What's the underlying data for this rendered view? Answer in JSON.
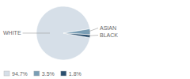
{
  "chart_data": {
    "type": "pie",
    "categories": [
      "WHITE",
      "ASIAN",
      "BLACK"
    ],
    "values": [
      94.7,
      3.5,
      1.8
    ],
    "value_labels": [
      "94.7%",
      "3.5%",
      "1.8%"
    ],
    "colors": [
      "#d6dfe8",
      "#7a9eb5",
      "#2b4f6e"
    ],
    "legend": "lower left"
  }
}
